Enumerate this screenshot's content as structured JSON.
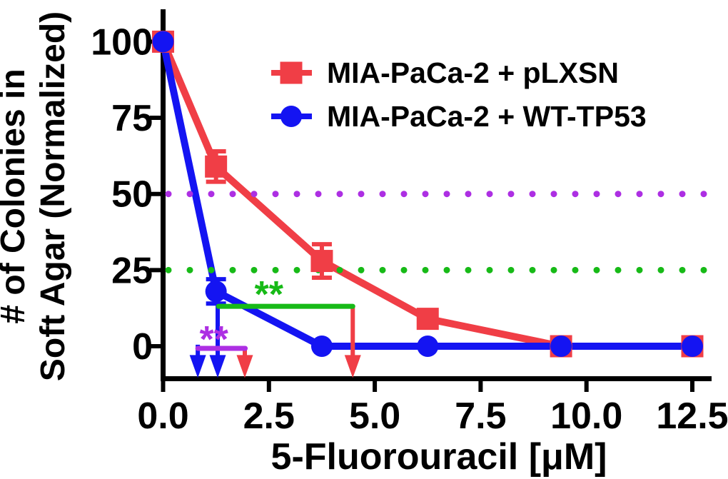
{
  "figure": {
    "background": "#FFFFFF"
  },
  "chart_data": {
    "type": "line",
    "title": "",
    "xlabel": "5-Fluorouracil [μM]",
    "ylabel_line1": "# of Colonies in",
    "ylabel_line2": "Soft Agar (Normalized)",
    "xlim": [
      0,
      12.9
    ],
    "ylim": [
      -11,
      106
    ],
    "grid": false,
    "legend_position": "inside-top-right",
    "x_ticks": [
      0,
      2.5,
      5,
      7.5,
      10,
      12.5
    ],
    "x_tick_labels": [
      "0.0",
      "2.5",
      "5.0",
      "7.5",
      "10.0",
      "12.5"
    ],
    "y_ticks": [
      0,
      25,
      50,
      75,
      100
    ],
    "y_tick_labels": [
      "0",
      "25",
      "50",
      "75",
      "100"
    ],
    "series": [
      {
        "name": "MIA-PaCa-2 + pLXSN",
        "color": "#F03E46",
        "marker": "square",
        "x": [
          0,
          1.25,
          3.75,
          6.25,
          9.4,
          12.5
        ],
        "y": [
          100,
          59,
          28,
          9,
          0,
          0
        ],
        "yerr": [
          0,
          5,
          5.5,
          0,
          0,
          0
        ]
      },
      {
        "name": "MIA-PaCa-2 + WT-TP53",
        "color": "#1414F2",
        "marker": "circle",
        "x": [
          0,
          1.25,
          3.75,
          6.25,
          9.4,
          12.5
        ],
        "y": [
          100,
          18,
          0,
          0,
          0,
          0
        ],
        "yerr": [
          0,
          4,
          0,
          0,
          0,
          0
        ]
      }
    ],
    "reference_lines": [
      {
        "name": "50-percent-reference-line",
        "y": 50,
        "color": "#AD2FE3",
        "style": "dotted"
      },
      {
        "name": "25-percent-reference-line",
        "y": 25,
        "color": "#17BA17",
        "style": "dotted"
      }
    ],
    "significance": [
      {
        "stars": "**",
        "color": "#17BA17",
        "bracket": {
          "x1": 1.31,
          "x2": 4.48,
          "y": 13.1
        },
        "stars_at": {
          "x": 2.5,
          "y": 12.9
        }
      },
      {
        "stars": "**",
        "color": "#AD2FE3",
        "bracket": {
          "x1": 0.82,
          "x2": 1.94,
          "y": -0.7
        },
        "stars_at": {
          "x": 1.2,
          "y": -1.9
        }
      }
    ],
    "arrows": [
      {
        "name": "blue-drop-arrow-1",
        "color": "#1414F2",
        "x": 0.82,
        "y_from": 0.5,
        "y_tip": -10.4
      },
      {
        "name": "blue-drop-arrow-2",
        "color": "#1414F2",
        "x": 1.29,
        "y_from": 17.8,
        "y_tip": -10.4
      },
      {
        "name": "red-drop-arrow-1",
        "color": "#F03E46",
        "x": 1.93,
        "y_from": -0.7,
        "y_tip": -10.4
      },
      {
        "name": "red-drop-arrow-2",
        "color": "#F03E46",
        "x": 4.48,
        "y_from": 13.1,
        "y_tip": -10.4
      }
    ]
  }
}
